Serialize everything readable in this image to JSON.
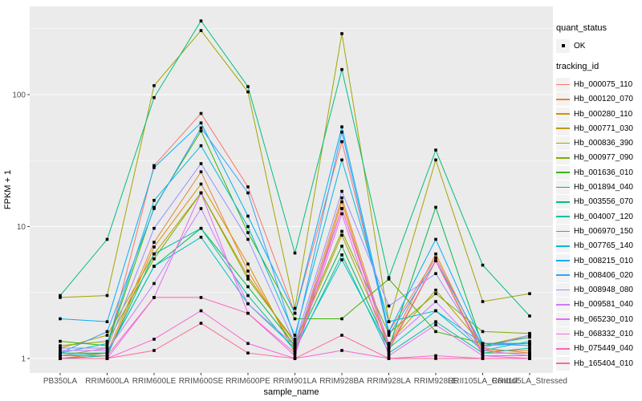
{
  "chart_data": {
    "type": "line",
    "title": "",
    "xlabel": "sample_name",
    "ylabel": "FPKM + 1",
    "y_scale": "log10",
    "ylim": [
      0.78,
      470
    ],
    "y_ticks": [
      1,
      10,
      100
    ],
    "y_minor_ticks": [
      3.162,
      31.62,
      316.2
    ],
    "grid": "on",
    "legend_position": "right",
    "point_marker": "black-point",
    "categories": [
      "PB350LA",
      "RRIM600LA",
      "RRIM600LE",
      "RRIM600SE",
      "RRIM600PE",
      "RRIM901LA",
      "RRIM928BA",
      "RRIM928LA",
      "RRIM928LE",
      "RRII105LA_Control",
      "RRII105LA_Stressed"
    ],
    "series": [
      {
        "name": "Hb_000075_110",
        "color": "#F8766D",
        "values": [
          1.05,
          1.2,
          29,
          72,
          20,
          2.2,
          44,
          1.6,
          5.8,
          1.2,
          1.1
        ]
      },
      {
        "name": "Hb_000120_070",
        "color": "#EA8331",
        "values": [
          1.0,
          1.1,
          7.6,
          26,
          4.6,
          1.2,
          16.5,
          1.25,
          6.2,
          1.15,
          1.15
        ]
      },
      {
        "name": "Hb_000280_110",
        "color": "#D89000",
        "values": [
          1.0,
          1.05,
          7.0,
          21,
          5.2,
          1.1,
          15.4,
          1.15,
          5.5,
          1.1,
          1.1
        ]
      },
      {
        "name": "Hb_000771_030",
        "color": "#C09B00",
        "values": [
          1.2,
          1.5,
          6.2,
          18,
          4.2,
          1.3,
          8.6,
          1.3,
          3.3,
          1.25,
          1.5
        ]
      },
      {
        "name": "Hb_000836_390",
        "color": "#A3A500",
        "values": [
          2.9,
          3.0,
          117,
          306,
          105,
          2.4,
          290,
          1.9,
          32,
          2.7,
          3.1
        ]
      },
      {
        "name": "Hb_000977_090",
        "color": "#7CAE00",
        "values": [
          1.25,
          1.35,
          5.7,
          18,
          4.0,
          1.35,
          9.2,
          1.55,
          3.1,
          1.6,
          1.55
        ]
      },
      {
        "name": "Hb_001636_010",
        "color": "#39B600",
        "values": [
          1.35,
          1.25,
          14,
          53,
          9.0,
          2.0,
          2.0,
          4.0,
          1.6,
          1.3,
          1.3
        ]
      },
      {
        "name": "Hb_001894_040",
        "color": "#00BB4E",
        "values": [
          1.1,
          1.1,
          5.0,
          9.7,
          3.5,
          1.25,
          7.1,
          1.2,
          14,
          1.25,
          1.45
        ]
      },
      {
        "name": "Hb_003556_070",
        "color": "#00BF7D",
        "values": [
          3.0,
          8.0,
          95,
          362,
          115,
          6.3,
          155,
          4.1,
          38,
          5.1,
          2.1
        ]
      },
      {
        "name": "Hb_004007_120",
        "color": "#00C1A3",
        "values": [
          1.0,
          1.05,
          6.2,
          9.7,
          3.0,
          1.15,
          6.1,
          1.1,
          1.9,
          1.1,
          1.2
        ]
      },
      {
        "name": "Hb_006970_150",
        "color": "#00C0C4",
        "values": [
          1.05,
          1.1,
          5.0,
          8.3,
          2.6,
          1.2,
          5.6,
          1.2,
          2.3,
          1.15,
          1.35
        ]
      },
      {
        "name": "Hb_007765_140",
        "color": "#00BAE0",
        "values": [
          1.1,
          1.3,
          15.8,
          41,
          10,
          1.5,
          32,
          1.9,
          2.3,
          1.3,
          1.25
        ]
      },
      {
        "name": "Hb_008215_010",
        "color": "#00B0F6",
        "values": [
          2.0,
          1.9,
          28,
          61,
          12,
          2.2,
          57,
          1.6,
          8.0,
          1.3,
          1.3
        ]
      },
      {
        "name": "Hb_008406_020",
        "color": "#35A2FF",
        "values": [
          1.1,
          1.6,
          13.7,
          56,
          18,
          1.4,
          52,
          1.5,
          5.5,
          1.25,
          1.3
        ]
      },
      {
        "name": "Hb_008948_080",
        "color": "#9590FF",
        "values": [
          1.2,
          1.2,
          9.7,
          30,
          8.0,
          1.3,
          18.5,
          2.5,
          4.4,
          1.2,
          1.5
        ]
      },
      {
        "name": "Hb_009581_040",
        "color": "#C77CFF",
        "values": [
          1.15,
          1.15,
          3.7,
          13.7,
          2.6,
          1.25,
          13.7,
          1.3,
          2.7,
          1.15,
          1.05
        ]
      },
      {
        "name": "Hb_065230_010",
        "color": "#E76BF3",
        "values": [
          1.0,
          1.0,
          2.9,
          18,
          2.2,
          1.05,
          12.5,
          1.05,
          1.8,
          1.05,
          1.0
        ]
      },
      {
        "name": "Hb_068332_010",
        "color": "#FA62DB",
        "values": [
          1.0,
          1.0,
          1.4,
          2.3,
          1.3,
          1.0,
          1.15,
          1.0,
          1.05,
          1.0,
          1.0
        ]
      },
      {
        "name": "Hb_075449_040",
        "color": "#FF62BC",
        "values": [
          1.05,
          1.05,
          2.9,
          2.9,
          2.2,
          1.1,
          13.7,
          1.2,
          5.5,
          1.05,
          1.05
        ]
      },
      {
        "name": "Hb_165404_010",
        "color": "#FF6A98",
        "values": [
          1.0,
          1.0,
          1.15,
          1.85,
          1.1,
          1.0,
          1.5,
          1.0,
          1.0,
          1.0,
          1.0
        ]
      }
    ]
  },
  "legend": {
    "quant_status_title": "quant_status",
    "quant_status_item": "OK",
    "tracking_title": "tracking_id"
  },
  "theme": {
    "panel_bg": "#EBEBEB",
    "grid_color": "#FFFFFF",
    "axis_text_color": "#4D4D4D",
    "tick_color": "#333333",
    "title_color": "#000000",
    "legend_key_bg": "#F2F2F2",
    "point_color": "#000000"
  }
}
